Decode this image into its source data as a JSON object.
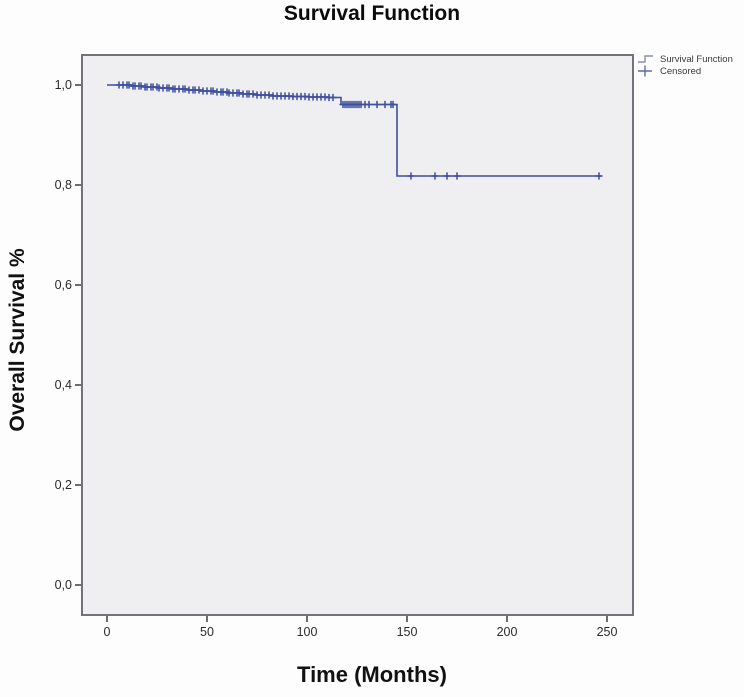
{
  "title": "Survival Function",
  "legend": {
    "items": [
      {
        "label": "Survival Function",
        "symbol": "step-line"
      },
      {
        "label": "Censored",
        "symbol": "plus"
      }
    ]
  },
  "chart_data": {
    "type": "line",
    "subtype": "kaplan-meier-step",
    "title": "Survival Function",
    "xlabel": "Time (Months)",
    "ylabel": "Overall Survival %",
    "x_ticks": [
      0,
      50,
      100,
      150,
      200,
      250
    ],
    "x_tick_labels": [
      "0",
      "50",
      "100",
      "150",
      "200",
      "250"
    ],
    "y_ticks": [
      0.0,
      0.2,
      0.4,
      0.6,
      0.8,
      1.0
    ],
    "y_tick_labels": [
      "0,0",
      "0,2",
      "0,4",
      "0,6",
      "0,8",
      "1,0"
    ],
    "xlim": [
      -12.5,
      263
    ],
    "ylim": [
      -0.06,
      1.06
    ],
    "grid": false,
    "legend_position": "outside-top-right",
    "series": [
      {
        "name": "Survival Function",
        "color": "#3e4fa0",
        "step_points": [
          [
            0,
            1.0
          ],
          [
            12,
            0.998
          ],
          [
            19,
            0.996
          ],
          [
            26,
            0.994
          ],
          [
            33,
            0.992
          ],
          [
            40,
            0.99
          ],
          [
            47,
            0.988
          ],
          [
            54,
            0.986
          ],
          [
            61,
            0.984
          ],
          [
            68,
            0.982
          ],
          [
            75,
            0.98
          ],
          [
            83,
            0.978
          ],
          [
            92,
            0.977
          ],
          [
            101,
            0.976
          ],
          [
            110,
            0.975
          ],
          [
            117,
            0.961
          ],
          [
            145,
            0.818
          ]
        ],
        "end_time": 247
      }
    ],
    "censored": {
      "name": "Censored",
      "marker": "plus",
      "times": [
        6,
        8,
        10,
        11,
        13,
        14,
        16,
        17,
        19,
        20,
        22,
        23,
        25,
        26,
        28,
        30,
        31,
        33,
        34,
        36,
        38,
        39,
        41,
        43,
        44,
        46,
        48,
        50,
        52,
        53,
        55,
        57,
        58,
        60,
        61,
        63,
        65,
        66,
        68,
        70,
        71,
        73,
        75,
        77,
        79,
        81,
        83,
        85,
        87,
        89,
        91,
        93,
        95,
        97,
        99,
        101,
        103,
        105,
        107,
        109,
        111,
        113,
        118,
        119,
        120,
        121,
        122,
        123,
        124,
        125,
        126,
        127,
        129,
        131,
        135,
        139,
        142,
        143,
        152,
        164,
        170,
        175,
        246
      ]
    }
  },
  "colors": {
    "curve": "#3e4fa0",
    "panel_background": "#efeff1",
    "panel_border": "#717379",
    "tick": "#3f3f3f",
    "tick_label": "#2a2a2a",
    "legend_symbol_line": "#8a90a0",
    "legend_symbol_plus": "#5d6cae"
  }
}
